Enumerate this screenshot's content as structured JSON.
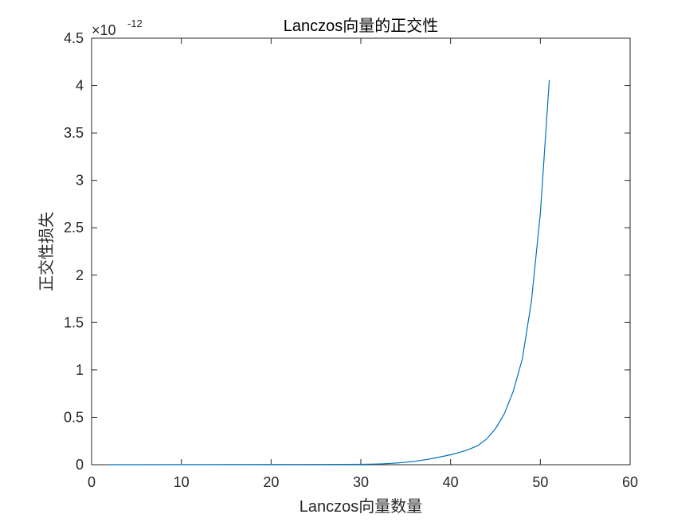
{
  "chart_data": {
    "type": "line",
    "title": "Lanczos向量的正交性",
    "xlabel": "Lanczos向量数量",
    "ylabel": "正交性损失",
    "xlim": [
      0,
      60
    ],
    "ylim": [
      0,
      4.5
    ],
    "x_ticks": [
      "0",
      "10",
      "20",
      "30",
      "40",
      "50",
      "60"
    ],
    "y_ticks": [
      "0",
      "0.5",
      "1",
      "1.5",
      "2",
      "2.5",
      "3",
      "3.5",
      "4",
      "4.5"
    ],
    "y_exponent": {
      "base": "×10",
      "power": "-12"
    },
    "grid": false,
    "series_color": "#0072BD",
    "x": [
      2,
      10,
      20,
      28,
      30,
      31,
      32,
      33,
      34,
      35,
      36,
      37,
      38,
      39,
      40,
      41,
      42,
      43,
      44,
      45,
      46,
      47,
      48,
      49,
      50,
      51
    ],
    "y": [
      0,
      0.001,
      0.002,
      0.003,
      0.004,
      0.006,
      0.008,
      0.012,
      0.018,
      0.026,
      0.036,
      0.05,
      0.066,
      0.085,
      0.105,
      0.13,
      0.16,
      0.2,
      0.27,
      0.38,
      0.54,
      0.78,
      1.12,
      1.72,
      2.65,
      4.06
    ]
  }
}
